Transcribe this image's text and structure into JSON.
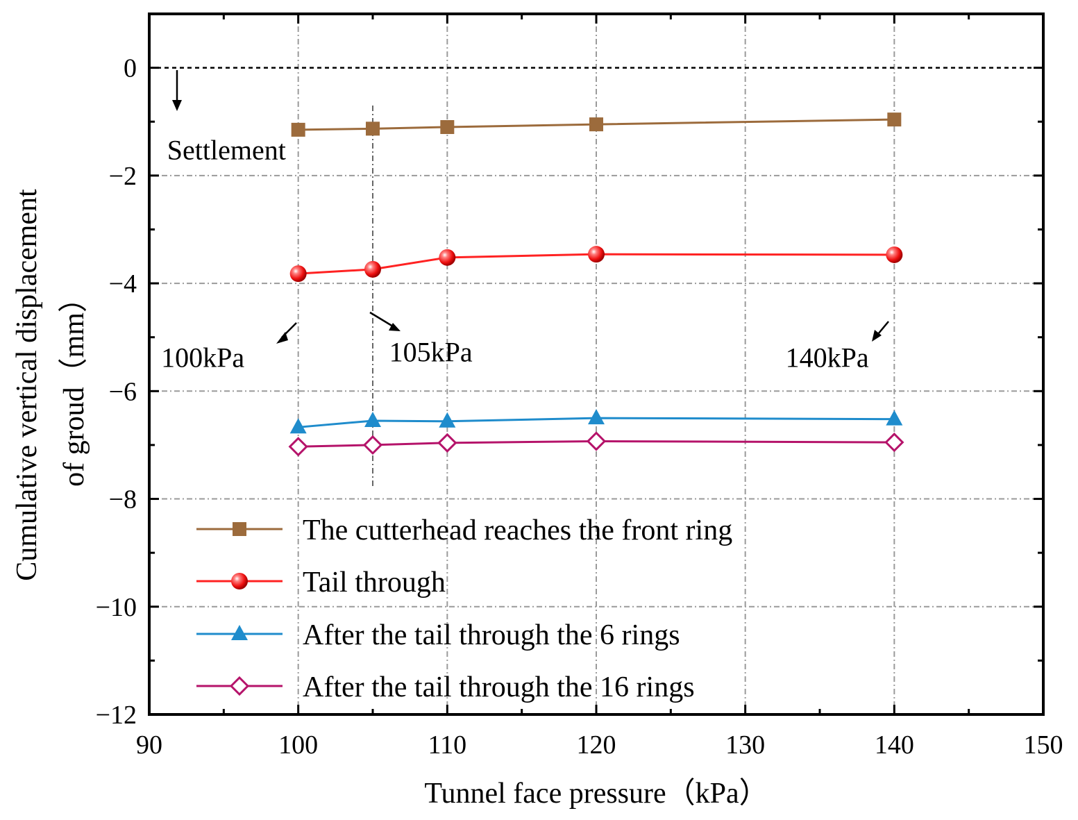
{
  "chart_data": {
    "type": "line",
    "title": "",
    "xlabel": "Tunnel face pressure（kPa）",
    "ylabel_line1": "Cumulative vertical displacement",
    "ylabel_line2": "of groud（mm）",
    "xlim": [
      90,
      150
    ],
    "ylim": [
      -12,
      1
    ],
    "xticks": [
      90,
      100,
      110,
      120,
      130,
      140,
      150
    ],
    "yticks": [
      0,
      -2,
      -4,
      -6,
      -8,
      -10,
      -12
    ],
    "ytick_labels": [
      "0",
      "−2",
      "−4",
      "−6",
      "−8",
      "−10",
      "−12"
    ],
    "grid": true,
    "legend_position": "bottom-left",
    "x": [
      100,
      105,
      110,
      120,
      140
    ],
    "series": [
      {
        "name": "The cutterhead reaches the front ring",
        "marker": "square",
        "color": "#9c6b3c",
        "values": [
          -1.15,
          -1.13,
          -1.1,
          -1.05,
          -0.96
        ]
      },
      {
        "name": "Tail through",
        "marker": "sphere",
        "color": "#ff2222",
        "values": [
          -3.82,
          -3.74,
          -3.52,
          -3.46,
          -3.47
        ]
      },
      {
        "name": "After the tail through the 6 rings",
        "marker": "triangle",
        "color": "#1f8ccc",
        "values": [
          -6.67,
          -6.55,
          -6.56,
          -6.5,
          -6.52
        ]
      },
      {
        "name": "After the tail through the 16 rings",
        "marker": "diamond-open",
        "color": "#b5136a",
        "values": [
          -7.03,
          -7.0,
          -6.96,
          -6.93,
          -6.95
        ]
      }
    ],
    "reference_line": {
      "y": 0,
      "style": "dashed"
    },
    "vertical_marker": {
      "x": 105,
      "from_y": -0.7,
      "to_y": -7.8
    },
    "annotations": [
      {
        "text": "Settlement",
        "x": 91.2,
        "y": -1.7
      },
      {
        "text": "100kPa",
        "x": 90.8,
        "y": -5.55
      },
      {
        "text": "105kPa",
        "x": 106.1,
        "y": -5.45
      },
      {
        "text": "140kPa",
        "x": 132.7,
        "y": -5.55
      }
    ]
  }
}
